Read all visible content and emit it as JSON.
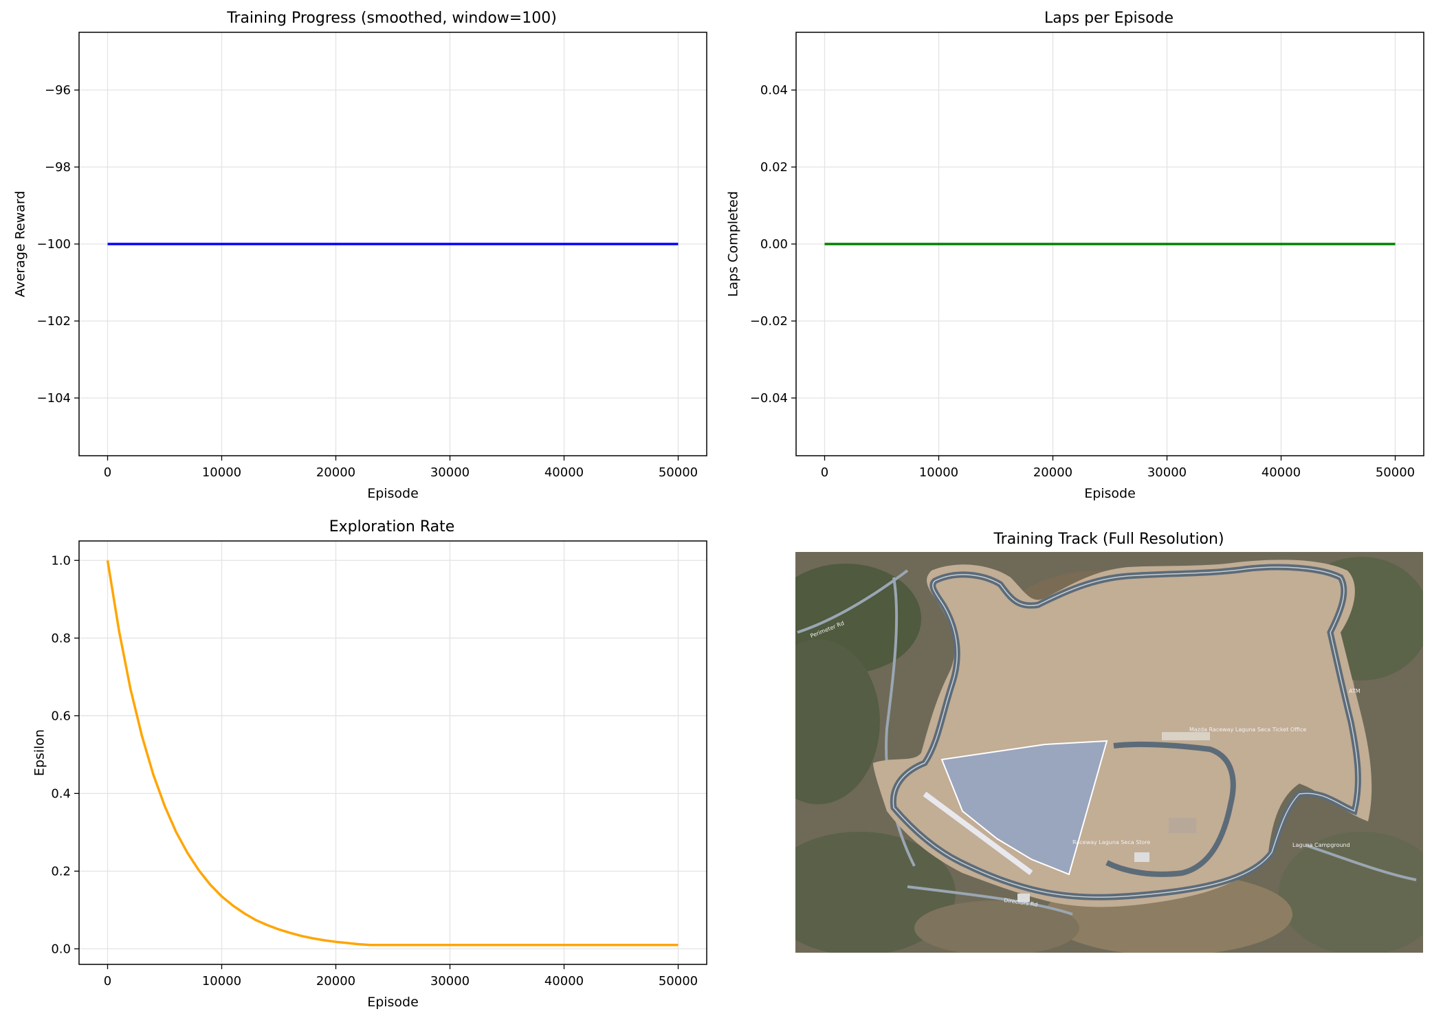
{
  "chart_data": [
    {
      "type": "line",
      "title": "Training Progress (smoothed, window=100)",
      "xlabel": "Episode",
      "ylabel": "Average Reward",
      "xlim": [
        -2500,
        52500
      ],
      "ylim": [
        -105.5,
        -94.5
      ],
      "xticks": [
        0,
        10000,
        20000,
        30000,
        40000,
        50000
      ],
      "yticks": [
        -104,
        -102,
        -100,
        -98,
        -96
      ],
      "ytick_labels": [
        "−104",
        "−102",
        "−100",
        "−98",
        "−96"
      ],
      "grid": true,
      "series": [
        {
          "color": "#0000ff",
          "x": [
            0,
            50000
          ],
          "y": [
            -100,
            -100
          ]
        }
      ]
    },
    {
      "type": "line",
      "title": "Laps per Episode",
      "xlabel": "Episode",
      "ylabel": "Laps Completed",
      "xlim": [
        -2500,
        52500
      ],
      "ylim": [
        -0.055,
        0.055
      ],
      "xticks": [
        0,
        10000,
        20000,
        30000,
        40000,
        50000
      ],
      "yticks": [
        -0.04,
        -0.02,
        0.0,
        0.02,
        0.04
      ],
      "ytick_labels": [
        "−0.04",
        "−0.02",
        "0.00",
        "0.02",
        "0.04"
      ],
      "grid": true,
      "series": [
        {
          "color": "#008000",
          "x": [
            0,
            50000
          ],
          "y": [
            0,
            0
          ]
        }
      ]
    },
    {
      "type": "line",
      "title": "Exploration Rate",
      "xlabel": "Episode",
      "ylabel": "Epsilon",
      "xlim": [
        -2500,
        52500
      ],
      "ylim": [
        -0.04,
        1.05
      ],
      "xticks": [
        0,
        10000,
        20000,
        30000,
        40000,
        50000
      ],
      "yticks": [
        0.0,
        0.2,
        0.4,
        0.6,
        0.8,
        1.0
      ],
      "ytick_labels": [
        "0.0",
        "0.2",
        "0.4",
        "0.6",
        "0.8",
        "1.0"
      ],
      "grid": true,
      "series": [
        {
          "color": "#ffa500",
          "x": [
            0,
            1000,
            2000,
            3000,
            4000,
            5000,
            6000,
            7000,
            8000,
            9000,
            10000,
            11000,
            12000,
            13000,
            14000,
            15000,
            16000,
            17000,
            18000,
            19000,
            20000,
            21000,
            22000,
            23000,
            25000,
            30000,
            35000,
            40000,
            45000,
            50000
          ],
          "y": [
            1.0,
            0.819,
            0.67,
            0.549,
            0.449,
            0.368,
            0.301,
            0.247,
            0.202,
            0.165,
            0.135,
            0.111,
            0.091,
            0.074,
            0.061,
            0.05,
            0.041,
            0.033,
            0.027,
            0.022,
            0.018,
            0.015,
            0.012,
            0.01,
            0.01,
            0.01,
            0.01,
            0.01,
            0.01,
            0.01
          ]
        }
      ]
    }
  ],
  "image_panel": {
    "title": "Training Track (Full Resolution)",
    "map_labels": [
      "Perimeter Rd",
      "Mazda Raceway Laguna Seca Ticket Office",
      "Raceway Laguna Seca Store",
      "Directors Rd",
      "ATM",
      "Laguna Campground"
    ]
  }
}
